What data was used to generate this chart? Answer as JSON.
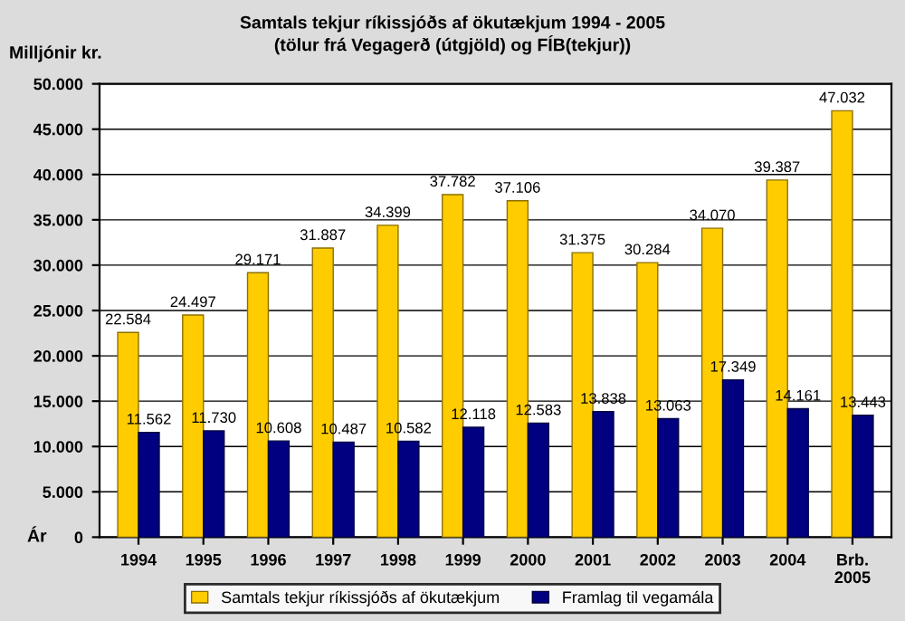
{
  "chart_data": {
    "type": "bar",
    "title": "Samtals tekjur ríkissjóðs af ökutækjum 1994 - 2005\n(tölur frá Vegagerð (útgjöld) og FÍB(tekjur))",
    "ylabel": "Milljónir kr.",
    "xlabel": "Ár",
    "categories": [
      "1994",
      "1995",
      "1996",
      "1997",
      "1998",
      "1999",
      "2000",
      "2001",
      "2002",
      "2003",
      "2004",
      "Brb.\n2005"
    ],
    "series": [
      {
        "name": "Samtals tekjur ríkissjóðs af ökutækjum",
        "color": "#ffcc00",
        "values": [
          22584,
          24497,
          29171,
          31887,
          34399,
          37782,
          37106,
          31375,
          30284,
          34070,
          39387,
          47032
        ],
        "value_labels": [
          "22.584",
          "24.497",
          "29.171",
          "31.887",
          "34.399",
          "37.782",
          "37.106",
          "31.375",
          "30.284",
          "34.070",
          "39.387",
          "47.032"
        ]
      },
      {
        "name": "Framlag til vegamála",
        "color": "#000080",
        "values": [
          11562,
          11730,
          10608,
          10487,
          10582,
          12118,
          12583,
          13838,
          13063,
          17349,
          14161,
          13443
        ],
        "value_labels": [
          "11.562",
          "11.730",
          "10.608",
          "10.487",
          "10.582",
          "12.118",
          "12.583",
          "13.838",
          "13.063",
          "17.349",
          "14.161",
          "13.443"
        ]
      }
    ],
    "ylim": [
      0,
      50000
    ],
    "yticks": [
      {
        "value": 0,
        "label": "0"
      },
      {
        "value": 5000,
        "label": "5.000"
      },
      {
        "value": 10000,
        "label": "10.000"
      },
      {
        "value": 15000,
        "label": "15.000"
      },
      {
        "value": 20000,
        "label": "20.000"
      },
      {
        "value": 25000,
        "label": "25.000"
      },
      {
        "value": 30000,
        "label": "30.000"
      },
      {
        "value": 35000,
        "label": "35.000"
      },
      {
        "value": 40000,
        "label": "40.000"
      },
      {
        "value": 45000,
        "label": "45.000"
      },
      {
        "value": 50000,
        "label": "50.000"
      }
    ],
    "grid": "y",
    "legend": "bottom"
  }
}
